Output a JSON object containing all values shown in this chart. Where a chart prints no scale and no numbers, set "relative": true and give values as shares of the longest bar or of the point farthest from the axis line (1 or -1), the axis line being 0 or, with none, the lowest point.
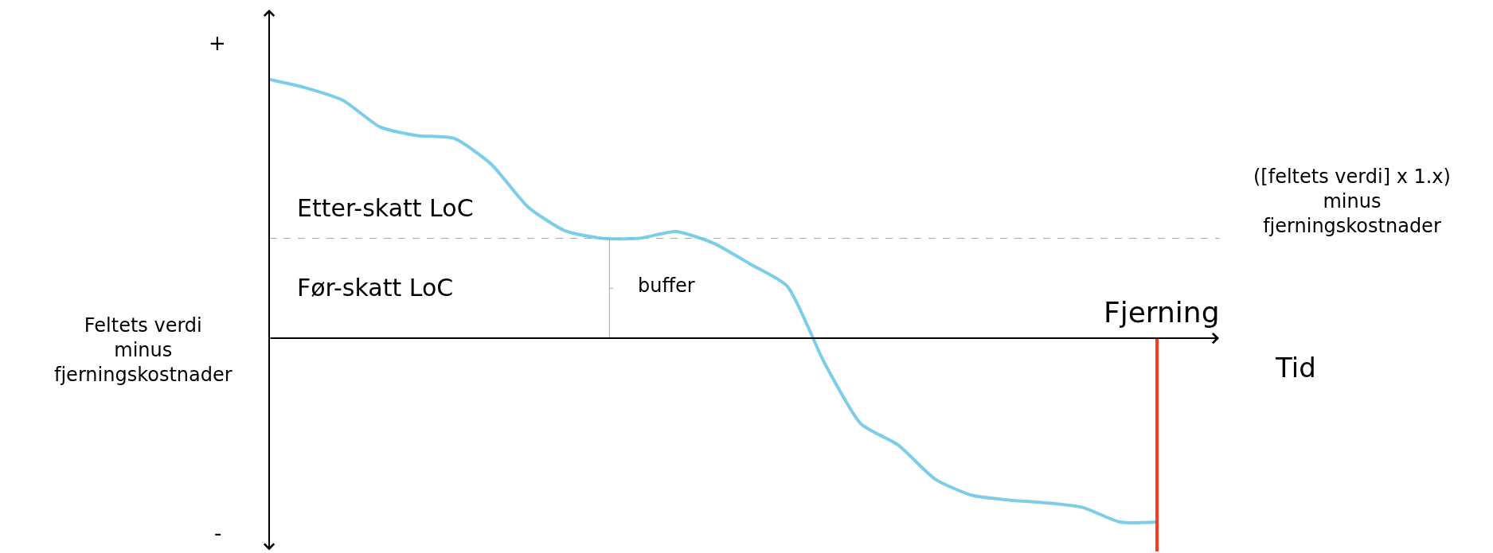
{
  "chart_data": {
    "type": "line",
    "relative": true,
    "ylabel": "Feltets verdi\nminus\nfjerningskostnader",
    "xlabel": "Tid",
    "categories": [
      null,
      null,
      null,
      null,
      null,
      null,
      null,
      null,
      null,
      null,
      null,
      null,
      null,
      null,
      null,
      null,
      null,
      null,
      null,
      null,
      null,
      null,
      null,
      null,
      null
    ],
    "series": [
      {
        "color": "#7ccde8",
        "values": [
          1,
          0.967,
          0.919,
          0.816,
          0.783,
          0.772,
          0.673,
          0.507,
          0.415,
          0.386,
          0.386,
          0.412,
          0.368,
          0.287,
          0.202,
          -0.092,
          -0.331,
          -0.412,
          -0.544,
          -0.607,
          -0.625,
          -0.636,
          -0.654,
          -0.71,
          -0.71
        ]
      }
    ],
    "ref_lines": [
      {
        "axis": "y",
        "value": 0.386,
        "label": "([feltets verdi] x 1.x)\nminus\nfjerningskostnader",
        "color": "#aaaaaa",
        "line_style": "dashed"
      }
    ],
    "annotations": [
      "+",
      "-",
      "Etter-skatt LoC",
      "Før-skatt LoC",
      "buffer",
      "Fjerning"
    ],
    "marker": "none",
    "line_style": "solid",
    "legend": false
  }
}
